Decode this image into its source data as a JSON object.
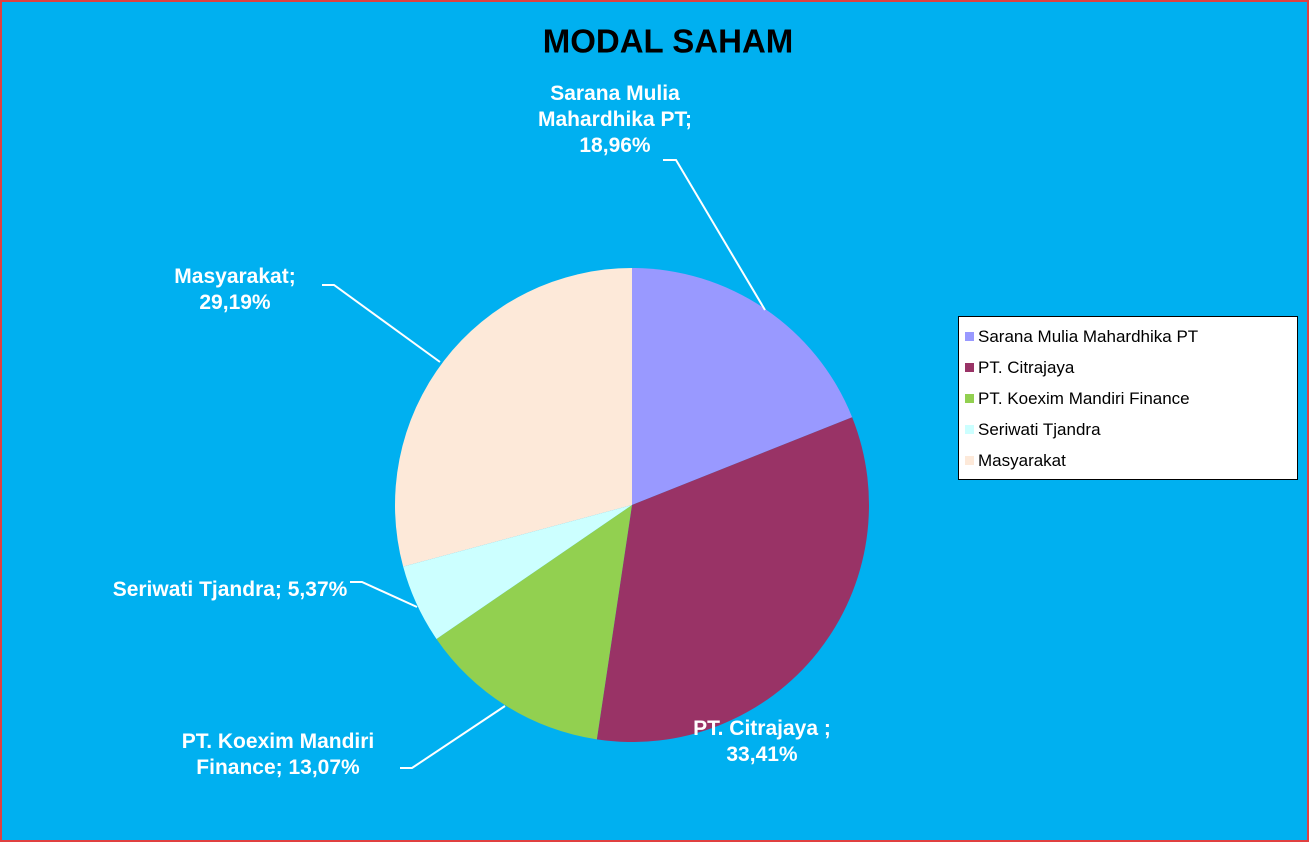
{
  "chart_data": {
    "type": "pie",
    "title": "MODAL SAHAM",
    "categories": [
      "Sarana Mulia Mahardhika PT",
      "PT. Citrajaya",
      "PT. Koexim Mandiri Finance",
      "Seriwati Tjandra",
      "Masyarakat"
    ],
    "values": [
      18.96,
      33.41,
      13.07,
      5.37,
      29.19
    ],
    "value_labels": [
      "Sarana Mulia Mahardhika PT; 18,96%",
      "PT. Citrajaya ; 33,41%",
      "PT. Koexim Mandiri Finance; 13,07%",
      "Seriwati Tjandra; 5,37%",
      "Masyarakat; 29,19%"
    ],
    "colors": [
      "#9999ff",
      "#993366",
      "#92d050",
      "#ccffff",
      "#fde9d9"
    ],
    "legend": "right"
  }
}
